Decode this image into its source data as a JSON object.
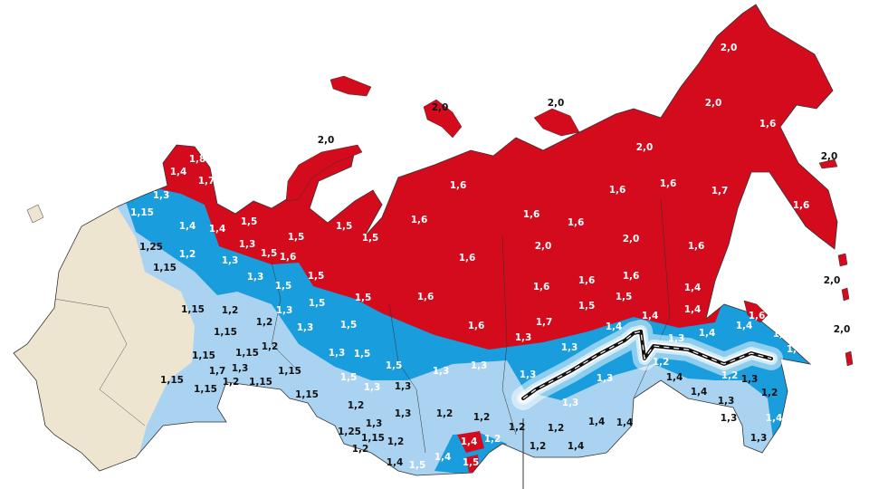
{
  "map": {
    "colors": {
      "red": "#d30b1c",
      "blue": "#1a9ddc",
      "lightblue": "#a9d3f0",
      "beige": "#ede5d0",
      "border": "#333333",
      "railway": "#111111"
    },
    "labels": [
      {
        "value": "2,0",
        "zone": "red"
      },
      {
        "value": "2,0",
        "zone": "red"
      },
      {
        "value": "1,6",
        "zone": "red"
      },
      {
        "value": "2,0",
        "zone": "red"
      },
      {
        "value": "1,6",
        "zone": "red"
      },
      {
        "value": "1,6",
        "zone": "red"
      },
      {
        "value": "1,6",
        "zone": "red"
      },
      {
        "value": "1,7",
        "zone": "red"
      },
      {
        "value": "1,6",
        "zone": "red"
      },
      {
        "value": "1,6",
        "zone": "red"
      },
      {
        "value": "1,6",
        "zone": "red"
      },
      {
        "value": "1,6",
        "zone": "red"
      },
      {
        "value": "2,0",
        "zone": "red"
      },
      {
        "value": "2,0",
        "zone": "red"
      },
      {
        "value": "1,6",
        "zone": "red"
      },
      {
        "value": "1,6",
        "zone": "red"
      },
      {
        "value": "1,5",
        "zone": "red"
      },
      {
        "value": "1,5",
        "zone": "red"
      },
      {
        "value": "1,6",
        "zone": "red"
      },
      {
        "value": "1,6",
        "zone": "red"
      },
      {
        "value": "1,6",
        "zone": "red"
      },
      {
        "value": "1,6",
        "zone": "red"
      },
      {
        "value": "1,4",
        "zone": "red"
      },
      {
        "value": "1,5",
        "zone": "red"
      },
      {
        "value": "1,5",
        "zone": "red"
      },
      {
        "value": "1,4",
        "zone": "red"
      },
      {
        "value": "1,6",
        "zone": "red"
      },
      {
        "value": "1,7",
        "zone": "red"
      },
      {
        "value": "1,3",
        "zone": "red"
      },
      {
        "value": "1,4",
        "zone": "red"
      },
      {
        "value": "1,4",
        "zone": "red"
      },
      {
        "value": "1,8",
        "zone": "red"
      },
      {
        "value": "1,4",
        "zone": "red"
      },
      {
        "value": "1,7",
        "zone": "red"
      },
      {
        "value": "1,4",
        "zone": "red"
      },
      {
        "value": "1,5",
        "zone": "red"
      },
      {
        "value": "1,3",
        "zone": "red"
      },
      {
        "value": "1,5",
        "zone": "red"
      },
      {
        "value": "1,5",
        "zone": "red"
      },
      {
        "value": "1,6",
        "zone": "red"
      },
      {
        "value": "1,5",
        "zone": "red"
      },
      {
        "value": "1,5",
        "zone": "red"
      },
      {
        "value": "1,6",
        "zone": "red"
      },
      {
        "value": "2,0",
        "zone": "outside"
      },
      {
        "value": "2,0",
        "zone": "outside"
      },
      {
        "value": "2,0",
        "zone": "outside"
      },
      {
        "value": "2,0",
        "zone": "outside"
      },
      {
        "value": "2,0",
        "zone": "outside"
      },
      {
        "value": "2,0",
        "zone": "outside"
      },
      {
        "value": "1,3",
        "zone": "blue"
      },
      {
        "value": "1,15",
        "zone": "blue"
      },
      {
        "value": "1,4",
        "zone": "blue"
      },
      {
        "value": "1,2",
        "zone": "blue"
      },
      {
        "value": "1,3",
        "zone": "blue"
      },
      {
        "value": "1,3",
        "zone": "blue"
      },
      {
        "value": "1,5",
        "zone": "blue"
      },
      {
        "value": "1,3",
        "zone": "blue"
      },
      {
        "value": "1,5",
        "zone": "blue"
      },
      {
        "value": "1,3",
        "zone": "blue"
      },
      {
        "value": "1,5",
        "zone": "blue"
      },
      {
        "value": "1,5",
        "zone": "blue"
      },
      {
        "value": "1,3",
        "zone": "blue"
      },
      {
        "value": "1,5",
        "zone": "blue"
      },
      {
        "value": "1,5",
        "zone": "blue"
      },
      {
        "value": "1,3",
        "zone": "blue"
      },
      {
        "value": "1,3",
        "zone": "blue"
      },
      {
        "value": "1,3",
        "zone": "blue"
      },
      {
        "value": "1,3",
        "zone": "blue"
      },
      {
        "value": "1,3",
        "zone": "blue"
      },
      {
        "value": "1,3",
        "zone": "blue"
      },
      {
        "value": "1,3",
        "zone": "blue"
      },
      {
        "value": "1,3",
        "zone": "blue"
      },
      {
        "value": "1,2",
        "zone": "blue"
      },
      {
        "value": "1,2",
        "zone": "blue"
      },
      {
        "value": "1,4",
        "zone": "blue"
      },
      {
        "value": "1,4",
        "zone": "blue"
      },
      {
        "value": "1,4",
        "zone": "blue"
      },
      {
        "value": "1,4",
        "zone": "blue"
      },
      {
        "value": "1,2",
        "zone": "blue"
      },
      {
        "value": "1,4",
        "zone": "blue"
      },
      {
        "value": "1,5",
        "zone": "blue"
      },
      {
        "value": "1,4",
        "zone": "red"
      },
      {
        "value": "1,5",
        "zone": "red"
      },
      {
        "value": "1,25",
        "zone": "lightblue"
      },
      {
        "value": "1,15",
        "zone": "lightblue"
      },
      {
        "value": "1,15",
        "zone": "lightblue"
      },
      {
        "value": "1,2",
        "zone": "lightblue"
      },
      {
        "value": "1,2",
        "zone": "lightblue"
      },
      {
        "value": "1,15",
        "zone": "lightblue"
      },
      {
        "value": "1,2",
        "zone": "lightblue"
      },
      {
        "value": "1,15",
        "zone": "lightblue"
      },
      {
        "value": "1,15",
        "zone": "lightblue"
      },
      {
        "value": "1,7",
        "zone": "lightblue"
      },
      {
        "value": "1,3",
        "zone": "lightblue"
      },
      {
        "value": "1,2",
        "zone": "lightblue"
      },
      {
        "value": "1,15",
        "zone": "lightblue"
      },
      {
        "value": "1,15",
        "zone": "lightblue"
      },
      {
        "value": "1,15",
        "zone": "lightblue"
      },
      {
        "value": "1,15",
        "zone": "lightblue"
      },
      {
        "value": "1,15",
        "zone": "lightblue"
      },
      {
        "value": "1,3",
        "zone": "lightblue"
      },
      {
        "value": "1,2",
        "zone": "lightblue"
      },
      {
        "value": "1,3",
        "zone": "lightblue"
      },
      {
        "value": "1,2",
        "zone": "lightblue"
      },
      {
        "value": "1,2",
        "zone": "lightblue"
      },
      {
        "value": "1,3",
        "zone": "lightblue"
      },
      {
        "value": "1,25",
        "zone": "lightblue"
      },
      {
        "value": "1,15",
        "zone": "lightblue"
      },
      {
        "value": "1,2",
        "zone": "lightblue"
      },
      {
        "value": "1,2",
        "zone": "lightblue"
      },
      {
        "value": "1,4",
        "zone": "lightblue"
      },
      {
        "value": "1,2",
        "zone": "lightblue"
      },
      {
        "value": "1,2",
        "zone": "lightblue"
      },
      {
        "value": "1,2",
        "zone": "lightblue"
      },
      {
        "value": "1,4",
        "zone": "lightblue"
      },
      {
        "value": "1,4",
        "zone": "lightblue"
      },
      {
        "value": "1,4",
        "zone": "lightblue"
      },
      {
        "value": "1,4",
        "zone": "lightblue"
      },
      {
        "value": "1,4",
        "zone": "lightblue"
      },
      {
        "value": "1,3",
        "zone": "lightblue"
      },
      {
        "value": "1,3",
        "zone": "lightblue"
      },
      {
        "value": "1,2",
        "zone": "lightblue"
      },
      {
        "value": "1,3",
        "zone": "lightblue"
      },
      {
        "value": "1,4",
        "zone": "blue"
      },
      {
        "value": "1,3",
        "zone": "lightblue"
      }
    ]
  }
}
